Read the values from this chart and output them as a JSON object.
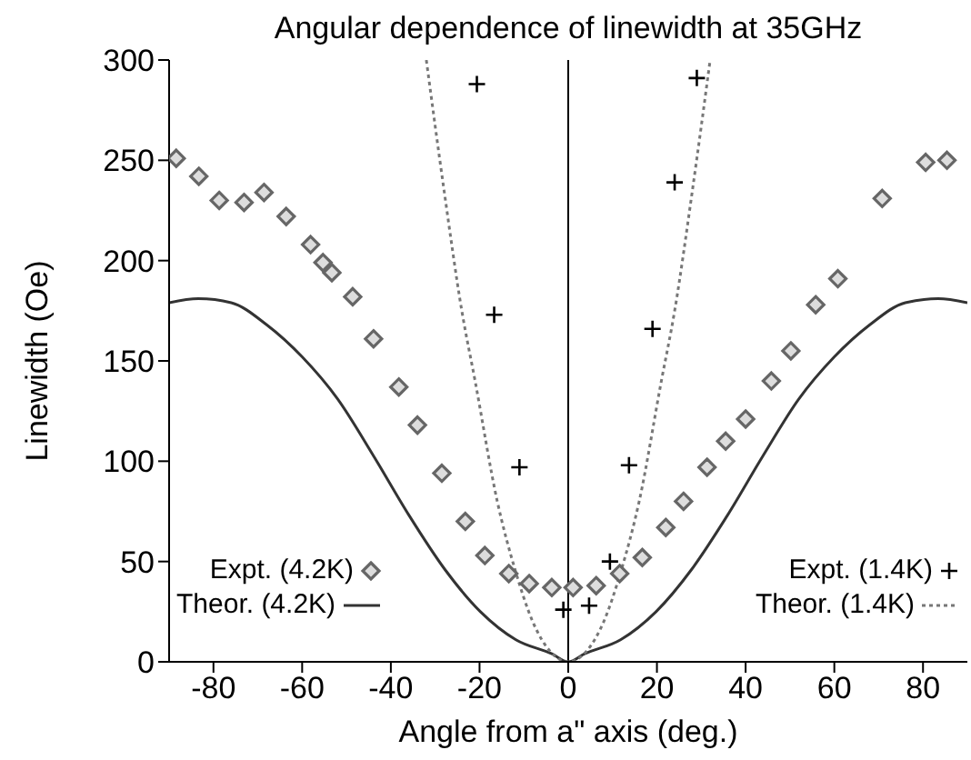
{
  "chart_data": {
    "type": "scatter",
    "title": "Angular dependence of linewidth at 35GHz",
    "xlabel": "Angle from a\" axis (deg.)",
    "ylabel": "Linewidth (Oe)",
    "xlim": [
      -90,
      90
    ],
    "xticks": [
      -80,
      -60,
      -40,
      -20,
      0,
      20,
      40,
      60,
      80
    ],
    "ylim": [
      0,
      300
    ],
    "yticks": [
      0,
      50,
      100,
      150,
      200,
      250,
      300
    ],
    "grid": false,
    "legend": "bottom",
    "ref_lines": [
      {
        "axis": "x",
        "value": 0,
        "color": "#000000",
        "line_style": "solid"
      }
    ],
    "series": [
      {
        "name": "Expt. (4.2K)",
        "marker": "diamond",
        "color": "#666666",
        "x": [
          -88.4,
          -83.3,
          -78.7,
          -73.1,
          -68.6,
          -63.6,
          -58.1,
          -55.3,
          -53.3,
          -48.6,
          -43.9,
          -38.2,
          -34,
          -28.5,
          -23.2,
          -18.8,
          -13.4,
          -8.8,
          -3.7,
          1.1,
          6.3,
          11.6,
          16.7,
          22,
          26,
          31.3,
          35.5,
          40,
          45.8,
          50.2,
          55.8,
          60.8,
          70.8,
          80.6,
          85.4
        ],
        "values": [
          251,
          242,
          230,
          229,
          234,
          222,
          208,
          199,
          194,
          182,
          161,
          137,
          118,
          94,
          70,
          53,
          44,
          39,
          37,
          37,
          38,
          44,
          52,
          67,
          80,
          97,
          110,
          121,
          140,
          155,
          178,
          191,
          231,
          249,
          250
        ]
      },
      {
        "name": "Theor. (4.2K)",
        "type": "line",
        "marker": "none",
        "line_style": "solid",
        "color": "#333333",
        "x": [
          -90,
          -83.4,
          -76,
          -68,
          -60,
          -52,
          -44,
          -35.9,
          -27.8,
          -19.8,
          -11.8,
          -3.7,
          0,
          3.7,
          11.8,
          19.8,
          27.8,
          35.9,
          44,
          52,
          60,
          68,
          76,
          83.4,
          90
        ],
        "values": [
          179,
          181,
          179,
          168,
          152,
          131,
          103,
          73,
          46,
          25,
          11,
          4,
          0,
          4,
          11,
          25,
          46,
          73,
          103,
          131,
          152,
          168,
          179,
          181,
          179
        ]
      },
      {
        "name": "Expt. (1.4K)",
        "marker": "cross",
        "color": "#000000",
        "x": [
          -20.6,
          -16.7,
          -11,
          -1.1,
          4.7,
          9.4,
          13.7,
          19,
          24,
          29
        ],
        "values": [
          288,
          173,
          97,
          26,
          28,
          50,
          98,
          166,
          239,
          291
        ]
      },
      {
        "name": "Theor. (1.4K)",
        "type": "line",
        "marker": "none",
        "line_style": "dotted",
        "color": "#777777",
        "x": [
          -32,
          -28,
          -24,
          -21,
          -16,
          -12,
          -8,
          -4,
          0,
          4,
          8,
          12,
          16,
          21,
          24,
          28,
          32
        ],
        "values": [
          300,
          235,
          175,
          140,
          80,
          46,
          20,
          5,
          0,
          5,
          20,
          46,
          80,
          140,
          175,
          235,
          300
        ]
      }
    ]
  }
}
